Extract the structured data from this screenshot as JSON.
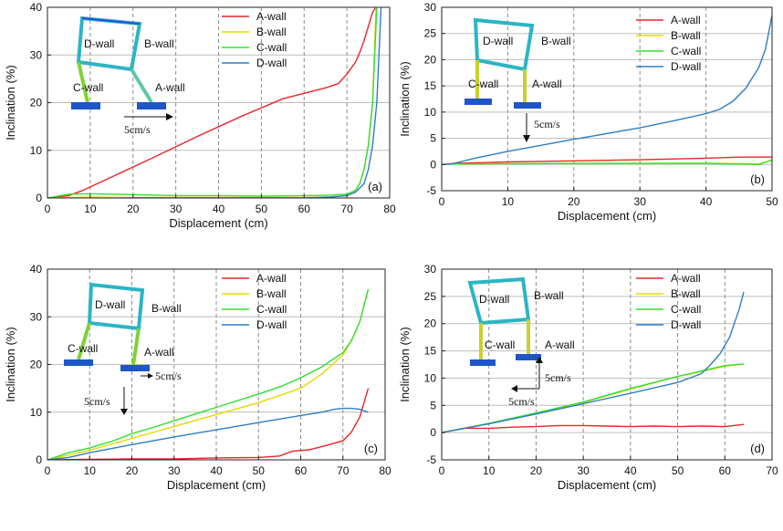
{
  "figure": {
    "type": "multi-panel line chart",
    "panels": 4
  },
  "chart_data": [
    {
      "type": "line",
      "panel_tag": "(a)",
      "xlabel": "Displacement (cm)",
      "ylabel": "Inclination (%)",
      "xlim": [
        0,
        80
      ],
      "ylim": [
        0,
        40
      ],
      "xticks": [
        0,
        10,
        20,
        30,
        40,
        50,
        60,
        70,
        80
      ],
      "yticks": [
        0,
        10,
        20,
        30,
        40
      ],
      "gridlines": "horizontal solid, vertical dashed",
      "legend_placement": "top-right",
      "inset": {
        "walls": [
          "D-wall",
          "B-wall",
          "C-wall",
          "A-wall"
        ],
        "arrow_labels": [
          "5cm/s"
        ]
      },
      "series": [
        {
          "name": "A-wall",
          "color": "#e8262a",
          "x": [
            0,
            5,
            8,
            15,
            25,
            35,
            45,
            55,
            65,
            68,
            70,
            72,
            73,
            74,
            75,
            76,
            76.8
          ],
          "y": [
            0,
            0.5,
            1.5,
            4.4,
            8.6,
            12.9,
            17.0,
            20.8,
            23.1,
            24.0,
            26.0,
            28.5,
            30.5,
            33.0,
            36.0,
            39.0,
            40
          ]
        },
        {
          "name": "B-wall",
          "color": "#e6d800",
          "x": [
            0,
            10,
            20,
            30,
            40,
            50,
            60,
            66,
            70,
            72,
            73,
            74,
            75,
            76,
            76.8
          ],
          "y": [
            0,
            0.2,
            0.1,
            0.1,
            0.1,
            0.1,
            0.1,
            0.2,
            0.5,
            1.5,
            3,
            6,
            11,
            20,
            40
          ]
        },
        {
          "name": "C-wall",
          "color": "#33dd33",
          "x": [
            0,
            5,
            10,
            20,
            30,
            40,
            50,
            60,
            66,
            70,
            72,
            73,
            74,
            75,
            76,
            77
          ],
          "y": [
            0,
            0.8,
            0.9,
            0.7,
            0.5,
            0.5,
            0.4,
            0.5,
            0.6,
            0.8,
            1.6,
            3,
            6,
            11,
            20,
            40
          ]
        },
        {
          "name": "D-wall",
          "color": "#2e7ec4",
          "x": [
            0,
            10,
            20,
            30,
            40,
            50,
            60,
            66,
            70,
            72,
            74,
            75,
            76,
            77,
            78
          ],
          "y": [
            0,
            -0.1,
            0,
            0,
            0,
            0,
            0,
            0.2,
            0.5,
            1.2,
            3,
            6,
            11,
            20,
            40
          ]
        }
      ]
    },
    {
      "type": "line",
      "panel_tag": "(b)",
      "xlabel": "Displacement (cm)",
      "ylabel": "Inclination (%)",
      "xlim": [
        0,
        50
      ],
      "ylim": [
        -5,
        30
      ],
      "xticks": [
        0,
        10,
        20,
        30,
        40,
        50
      ],
      "yticks": [
        -5,
        0,
        5,
        10,
        15,
        20,
        25,
        30
      ],
      "gridlines": "horizontal solid, vertical dashed",
      "legend_placement": "top-right",
      "inset": {
        "walls": [
          "D-wall",
          "B-wall",
          "C-wall",
          "A-wall"
        ],
        "arrow_labels": [
          "5cm/s"
        ]
      },
      "series": [
        {
          "name": "A-wall",
          "color": "#e8262a",
          "x": [
            0,
            2,
            10,
            20,
            30,
            40,
            45,
            50
          ],
          "y": [
            0,
            0.2,
            0.5,
            0.7,
            0.9,
            1.2,
            1.4,
            1.4
          ]
        },
        {
          "name": "B-wall",
          "color": "#e6d800",
          "x": [
            0,
            2,
            10,
            20,
            30,
            40,
            48,
            50
          ],
          "y": [
            0,
            0.1,
            0.15,
            0.2,
            0.2,
            0.25,
            0.1,
            0.8
          ]
        },
        {
          "name": "C-wall",
          "color": "#33dd33",
          "x": [
            0,
            2,
            10,
            20,
            30,
            40,
            48,
            50
          ],
          "y": [
            0,
            0.1,
            0.15,
            0.2,
            0.2,
            0.2,
            0.0,
            0.9
          ]
        },
        {
          "name": "D-wall",
          "color": "#2e7ec4",
          "x": [
            0,
            1.5,
            5,
            10,
            20,
            30,
            35,
            40,
            42,
            44,
            46,
            48,
            49,
            50
          ],
          "y": [
            0,
            0.1,
            1.2,
            2.5,
            4.8,
            7.0,
            8.3,
            9.7,
            10.5,
            12.0,
            14.5,
            18.5,
            22.0,
            28.5
          ]
        }
      ]
    },
    {
      "type": "line",
      "panel_tag": "(c)",
      "xlabel": "Displacement (cm)",
      "ylabel": "Inclination (%)",
      "xlim": [
        0,
        80
      ],
      "ylim": [
        0,
        40
      ],
      "xticks": [
        0,
        10,
        20,
        30,
        40,
        50,
        60,
        70,
        80
      ],
      "yticks": [
        0,
        10,
        20,
        30,
        40
      ],
      "gridlines": "horizontal solid, vertical dashed",
      "legend_placement": "top-right",
      "inset": {
        "walls": [
          "D-wall",
          "B-wall",
          "C-wall",
          "A-wall"
        ],
        "arrow_labels": [
          "5cm/s",
          "5cm/s"
        ]
      },
      "series": [
        {
          "name": "A-wall",
          "color": "#e8262a",
          "x": [
            0,
            10,
            20,
            30,
            40,
            50,
            55,
            58,
            62,
            66,
            70,
            72,
            74,
            76
          ],
          "y": [
            0,
            0.1,
            0.2,
            0.2,
            0.4,
            0.5,
            0.8,
            1.8,
            2.1,
            3.0,
            4.0,
            5.8,
            9.0,
            15.0
          ]
        },
        {
          "name": "B-wall",
          "color": "#e6d800",
          "x": [
            0,
            5,
            10,
            20,
            30,
            40,
            50,
            60,
            65,
            70,
            72,
            74,
            76
          ],
          "y": [
            0,
            1,
            2.0,
            4.5,
            7.0,
            9.5,
            12.0,
            15.0,
            18.0,
            22.0,
            25.0,
            29.0,
            35.8
          ]
        },
        {
          "name": "C-wall",
          "color": "#33dd33",
          "x": [
            0,
            5,
            10,
            15,
            20,
            25,
            30,
            35,
            40,
            45,
            50,
            55,
            60,
            65,
            70,
            72,
            74,
            76
          ],
          "y": [
            0,
            1.5,
            2.5,
            3.8,
            5.5,
            6.8,
            8.2,
            9.6,
            11.0,
            12.4,
            13.8,
            15.3,
            17.2,
            19.5,
            22.5,
            25.0,
            29.0,
            35.8
          ]
        },
        {
          "name": "D-wall",
          "color": "#2e7ec4",
          "x": [
            0,
            5,
            10,
            20,
            30,
            40,
            50,
            60,
            65,
            68,
            70,
            72,
            74,
            76
          ],
          "y": [
            0,
            0.5,
            1.5,
            3.2,
            4.8,
            6.3,
            7.8,
            9.3,
            10.0,
            10.6,
            10.8,
            10.8,
            10.6,
            10.0
          ]
        }
      ]
    },
    {
      "type": "line",
      "panel_tag": "(d)",
      "xlabel": "Displacement (cm)",
      "ylabel": "Inclination (%)",
      "xlim": [
        0,
        70
      ],
      "ylim": [
        -5,
        30
      ],
      "xticks": [
        0,
        10,
        20,
        30,
        40,
        50,
        60,
        70
      ],
      "yticks": [
        -5,
        0,
        5,
        10,
        15,
        20,
        25,
        30
      ],
      "gridlines": "horizontal solid, vertical dashed",
      "legend_placement": "top-right",
      "inset": {
        "walls": [
          "D-wall",
          "B-wall",
          "C-wall",
          "A-wall"
        ],
        "arrow_labels": [
          "5cm/s",
          "5cm/s"
        ]
      },
      "series": [
        {
          "name": "A-wall",
          "color": "#e8262a",
          "x": [
            0,
            5,
            10,
            15,
            20,
            25,
            30,
            35,
            40,
            45,
            50,
            55,
            60,
            64
          ],
          "y": [
            0,
            0.8,
            0.8,
            1.0,
            1.1,
            1.3,
            1.3,
            1.2,
            1.1,
            1.2,
            1.1,
            1.2,
            1.1,
            1.5
          ]
        },
        {
          "name": "B-wall",
          "color": "#e6d800",
          "x": [
            0,
            10,
            20,
            30,
            40,
            50,
            55,
            60,
            64
          ],
          "y": [
            0,
            1.7,
            3.5,
            5.5,
            8.0,
            10.3,
            11.2,
            12.2,
            12.6
          ]
        },
        {
          "name": "C-wall",
          "color": "#33dd33",
          "x": [
            0,
            10,
            20,
            30,
            40,
            50,
            55,
            60,
            64
          ],
          "y": [
            0,
            1.7,
            3.6,
            5.6,
            8.1,
            10.3,
            11.3,
            12.3,
            12.6
          ]
        },
        {
          "name": "D-wall",
          "color": "#2e7ec4",
          "x": [
            0,
            10,
            20,
            30,
            40,
            50,
            55,
            57,
            59,
            61,
            62,
            63,
            64
          ],
          "y": [
            0,
            1.6,
            3.4,
            5.3,
            7.2,
            9.2,
            10.8,
            12.5,
            14.5,
            17.5,
            20.0,
            22.5,
            25.8
          ]
        }
      ]
    }
  ]
}
